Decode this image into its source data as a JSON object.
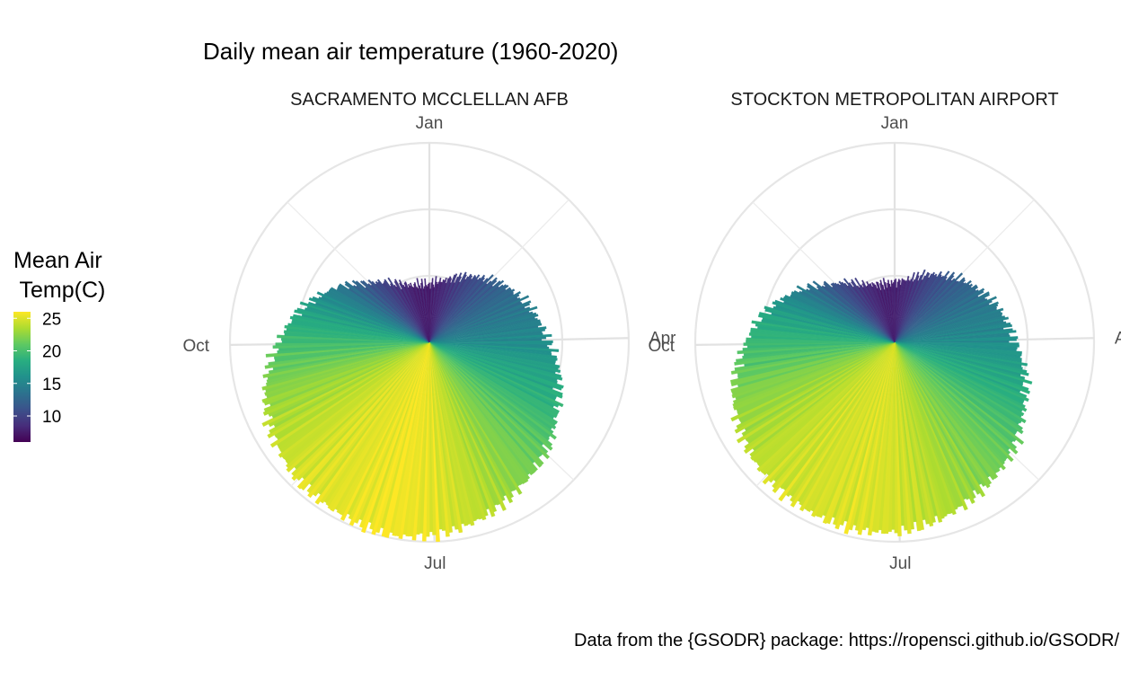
{
  "chart_data": {
    "type": "bar",
    "coord": "polar",
    "title": "Daily mean air temperature (1960-2020)",
    "caption": "Data from the {GSODR} package: https://ropensci.github.io/GSODR/",
    "theta_labels": [
      "Jan",
      "Apr",
      "Jul",
      "Oct"
    ],
    "theta_unit": "day of year",
    "legend": {
      "title_line1": "Mean Air",
      "title_line2": " Temp(C)",
      "ticks": [
        "25",
        "20",
        "15",
        "10"
      ],
      "tick_values": [
        25,
        20,
        15,
        10
      ],
      "range": [
        6,
        26
      ],
      "palette": "viridis",
      "placement": "left"
    },
    "facets": [
      {
        "name": "SACRAMENTO MCCLELLAN AFB",
        "day_of_year": [
          1,
          15,
          32,
          46,
          60,
          74,
          91,
          105,
          121,
          135,
          152,
          166,
          182,
          196,
          213,
          227,
          244,
          258,
          274,
          288,
          305,
          319,
          335,
          349,
          365
        ],
        "temperature_c": [
          7.6,
          8.3,
          10.0,
          11.4,
          12.8,
          14.0,
          15.4,
          17.3,
          18.9,
          20.8,
          22.4,
          23.9,
          25.2,
          25.7,
          25.2,
          24.9,
          23.8,
          22.4,
          19.8,
          17.6,
          14.2,
          11.2,
          8.9,
          7.7,
          7.6
        ]
      },
      {
        "name": "STOCKTON METROPOLITAN AIRPORT",
        "day_of_year": [
          1,
          15,
          32,
          46,
          60,
          74,
          91,
          105,
          121,
          135,
          152,
          166,
          182,
          196,
          213,
          227,
          244,
          258,
          274,
          288,
          305,
          319,
          335,
          349,
          365
        ],
        "temperature_c": [
          7.7,
          8.5,
          10.3,
          11.7,
          13.0,
          14.3,
          15.6,
          17.4,
          19.1,
          20.9,
          22.3,
          23.6,
          24.7,
          25.0,
          24.7,
          24.4,
          23.3,
          22.0,
          19.5,
          17.4,
          13.9,
          11.0,
          8.8,
          7.8,
          7.7
        ]
      }
    ]
  }
}
